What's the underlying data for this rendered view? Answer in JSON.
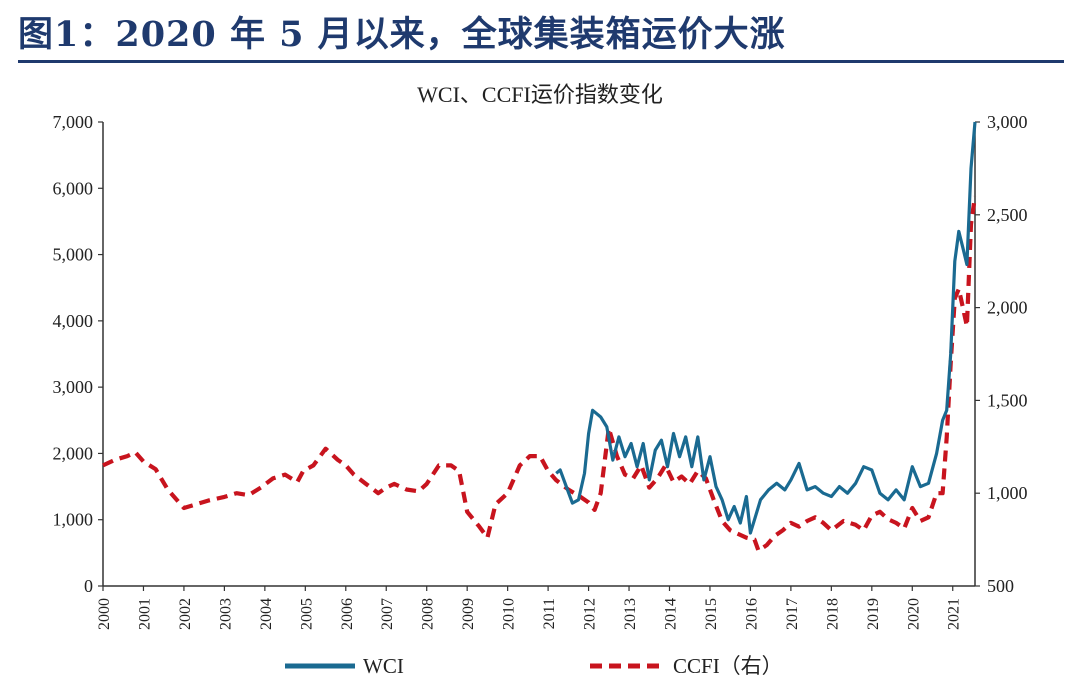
{
  "header": {
    "title": "图1：2020 年 5 月以来，全球集装箱运价大涨"
  },
  "colors": {
    "title": "#1f3a6e",
    "wci": "#1a6a91",
    "ccfi": "#c8141e"
  },
  "chart_data": {
    "type": "line",
    "title": "WCI、CCFI运价指数变化",
    "x_ticks": [
      "2000",
      "2001",
      "2002",
      "2003",
      "2004",
      "2005",
      "2006",
      "2007",
      "2008",
      "2009",
      "2010",
      "2011",
      "2012",
      "2013",
      "2014",
      "2015",
      "2016",
      "2017",
      "2018",
      "2019",
      "2020",
      "2021"
    ],
    "x_range": [
      2000,
      2021.55
    ],
    "y_left": {
      "ticks": [
        "0",
        "1,000",
        "2,000",
        "3,000",
        "4,000",
        "5,000",
        "6,000",
        "7,000"
      ],
      "range": [
        0,
        7000
      ]
    },
    "y_right": {
      "ticks": [
        "500",
        "1,000",
        "1,500",
        "2,000",
        "2,500",
        "3,000"
      ],
      "range": [
        500,
        3000
      ]
    },
    "grid": false,
    "legend_position": "bottom",
    "series": [
      {
        "name": "WCI",
        "axis": "left",
        "style": "solid",
        "x": [
          2011.2,
          2011.3,
          2011.45,
          2011.6,
          2011.75,
          2011.9,
          2012.0,
          2012.1,
          2012.2,
          2012.3,
          2012.45,
          2012.6,
          2012.75,
          2012.9,
          2013.05,
          2013.2,
          2013.35,
          2013.5,
          2013.65,
          2013.8,
          2013.95,
          2014.1,
          2014.25,
          2014.4,
          2014.55,
          2014.7,
          2014.85,
          2015.0,
          2015.15,
          2015.3,
          2015.45,
          2015.6,
          2015.75,
          2015.9,
          2016.0,
          2016.1,
          2016.25,
          2016.45,
          2016.65,
          2016.85,
          2017.0,
          2017.2,
          2017.4,
          2017.6,
          2017.8,
          2018.0,
          2018.2,
          2018.4,
          2018.6,
          2018.8,
          2019.0,
          2019.2,
          2019.4,
          2019.6,
          2019.8,
          2020.0,
          2020.2,
          2020.4,
          2020.6,
          2020.75,
          2020.85,
          2020.95,
          2021.05,
          2021.15,
          2021.25,
          2021.35,
          2021.45,
          2021.55
        ],
        "values": [
          1700,
          1750,
          1500,
          1250,
          1300,
          1700,
          2300,
          2650,
          2600,
          2550,
          2400,
          1900,
          2250,
          1950,
          2150,
          1800,
          2150,
          1600,
          2050,
          2200,
          1800,
          2300,
          1950,
          2250,
          1800,
          2250,
          1600,
          1950,
          1500,
          1300,
          1000,
          1200,
          950,
          1350,
          800,
          1000,
          1300,
          1450,
          1550,
          1450,
          1600,
          1850,
          1450,
          1500,
          1400,
          1350,
          1500,
          1400,
          1550,
          1800,
          1750,
          1400,
          1300,
          1450,
          1300,
          1800,
          1500,
          1550,
          2000,
          2500,
          2650,
          3500,
          4900,
          5350,
          5100,
          4850,
          6300,
          7000
        ]
      },
      {
        "name": "CCFI（右）",
        "axis": "right",
        "style": "dashed",
        "x": [
          2000.0,
          2000.3,
          2000.6,
          2000.8,
          2001.0,
          2001.3,
          2001.6,
          2002.0,
          2002.3,
          2002.6,
          2003.0,
          2003.3,
          2003.6,
          2003.9,
          2004.2,
          2004.5,
          2004.8,
          2004.95,
          2005.2,
          2005.5,
          2005.8,
          2006.0,
          2006.2,
          2006.5,
          2006.8,
          2007.0,
          2007.2,
          2007.5,
          2007.8,
          2008.0,
          2008.3,
          2008.6,
          2008.8,
          2009.0,
          2009.3,
          2009.5,
          2009.7,
          2010.0,
          2010.3,
          2010.55,
          2010.8,
          2011.0,
          2011.2,
          2011.5,
          2011.8,
          2012.0,
          2012.15,
          2012.3,
          2012.5,
          2012.7,
          2012.9,
          2013.1,
          2013.3,
          2013.5,
          2013.7,
          2013.9,
          2014.1,
          2014.3,
          2014.5,
          2014.7,
          2014.9,
          2015.1,
          2015.3,
          2015.5,
          2015.7,
          2015.9,
          2016.1,
          2016.2,
          2016.4,
          2016.6,
          2016.8,
          2017.0,
          2017.2,
          2017.4,
          2017.6,
          2017.8,
          2018.0,
          2018.3,
          2018.6,
          2018.8,
          2019.0,
          2019.2,
          2019.4,
          2019.6,
          2019.8,
          2020.0,
          2020.2,
          2020.4,
          2020.6,
          2020.75,
          2020.85,
          2020.95,
          2021.05,
          2021.15,
          2021.25,
          2021.35,
          2021.45,
          2021.55
        ],
        "values": [
          1150,
          1180,
          1200,
          1220,
          1170,
          1130,
          1020,
          920,
          940,
          960,
          980,
          1000,
          990,
          1030,
          1080,
          1100,
          1060,
          1120,
          1150,
          1240,
          1180,
          1150,
          1100,
          1050,
          1000,
          1030,
          1050,
          1020,
          1010,
          1050,
          1150,
          1150,
          1120,
          900,
          820,
          760,
          940,
          1000,
          1150,
          1200,
          1200,
          1120,
          1070,
          1020,
          980,
          950,
          910,
          1000,
          1350,
          1200,
          1100,
          1080,
          1150,
          1030,
          1080,
          1150,
          1060,
          1090,
          1050,
          1120,
          1080,
          960,
          850,
          800,
          780,
          760,
          750,
          690,
          720,
          770,
          800,
          840,
          820,
          850,
          870,
          840,
          800,
          850,
          830,
          800,
          880,
          900,
          860,
          840,
          810,
          920,
          850,
          870,
          1000,
          1000,
          1300,
          1700,
          2050,
          2100,
          2000,
          1900,
          2450,
          2600
        ]
      }
    ]
  }
}
